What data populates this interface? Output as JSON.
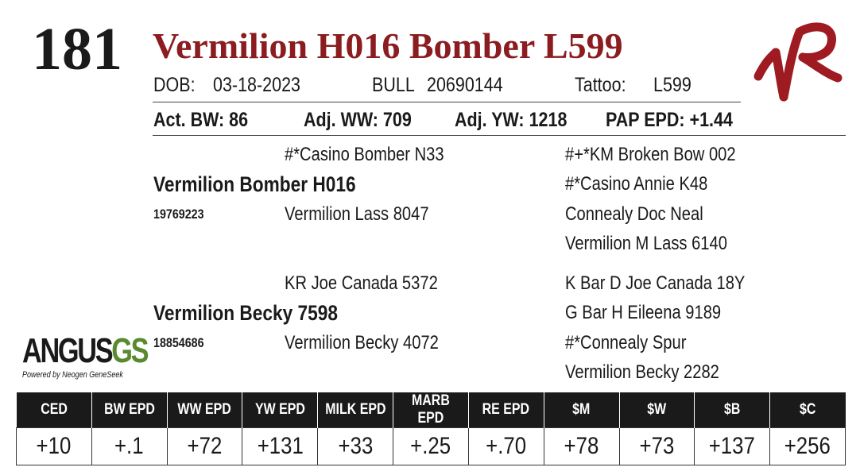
{
  "lot_number": "181",
  "animal_name": "Vermilion H016 Bomber L599",
  "info_row1": {
    "dob_label": "DOB:",
    "dob": "03-18-2023",
    "sex_label": "BULL",
    "reg_number": "20690144",
    "tattoo_label": "Tattoo:",
    "tattoo": "L599"
  },
  "info_row2": {
    "bw": "Act. BW: 86",
    "ww": "Adj. WW: 709",
    "yw": "Adj. YW: 1218",
    "pap": "PAP EPD: +1.44"
  },
  "pedigree": {
    "sire": "Vermilion Bomber H016",
    "sire_reg": "19769223",
    "sire_sire": "#*Casino Bomber N33",
    "sire_dam": "Vermilion Lass 8047",
    "ss_sire": "#+*KM Broken Bow 002",
    "ss_dam": "#*Casino Annie K48",
    "sd_sire": "Connealy Doc Neal",
    "sd_dam": "Vermilion M Lass 6140",
    "dam": "Vermilion Becky 7598",
    "dam_reg": "18854686",
    "dam_sire": "KR Joe Canada 5372",
    "dam_dam": "Vermilion Becky 4072",
    "ds_sire": "K Bar D Joe Canada 18Y",
    "ds_dam": "G Bar H Eileena 9189",
    "dd_sire": "#*Connealy Spur",
    "dd_dam": "Vermilion Becky 2282"
  },
  "logo": {
    "main_a": "ANGUS",
    "main_b": "GS",
    "sub": "Powered by Neogen GeneSeek"
  },
  "brand_icon": "vr-brand-mark",
  "colors": {
    "title": "#8b1c20",
    "brand": "#9e1b22",
    "header_bg": "#1a1a1a",
    "logo_gs": "#5a8a2f"
  },
  "epd": {
    "headers": [
      "CED",
      "BW EPD",
      "WW EPD",
      "YW EPD",
      "MILK EPD",
      "MARB EPD",
      "RE EPD",
      "$M",
      "$W",
      "$B",
      "$C"
    ],
    "values": [
      "+10",
      "+.1",
      "+72",
      "+131",
      "+33",
      "+.25",
      "+.70",
      "+78",
      "+73",
      "+137",
      "+256"
    ]
  }
}
